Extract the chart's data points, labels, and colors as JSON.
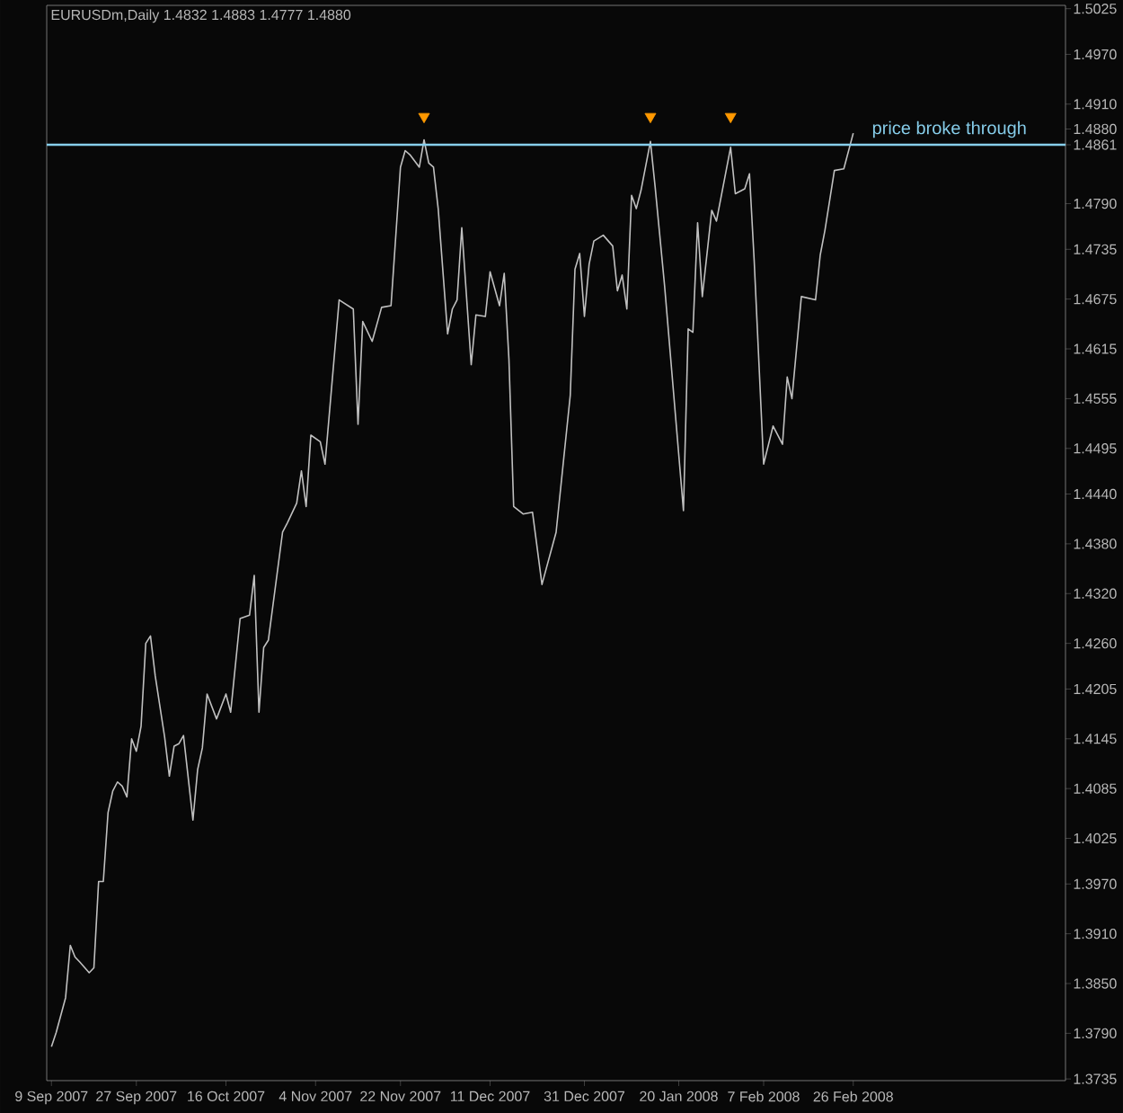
{
  "chart_data": {
    "type": "line",
    "title": "EURUSDm,Daily  1.4832 1.4883 1.4777 1.4880",
    "xlim": [
      "2007-09-08",
      "2008-04-11"
    ],
    "ylim": [
      1.3733,
      1.5029
    ],
    "xticks": [
      {
        "value": "2007-09-09",
        "label": "9 Sep 2007"
      },
      {
        "value": "2007-09-27",
        "label": "27 Sep 2007"
      },
      {
        "value": "2007-10-16",
        "label": "16 Oct 2007"
      },
      {
        "value": "2007-11-04",
        "label": "4 Nov 2007"
      },
      {
        "value": "2007-11-22",
        "label": "22 Nov 2007"
      },
      {
        "value": "2007-12-11",
        "label": "11 Dec 2007"
      },
      {
        "value": "2007-12-31",
        "label": "31 Dec 2007"
      },
      {
        "value": "2008-01-20",
        "label": "20 Jan 2008"
      },
      {
        "value": "2008-02-07",
        "label": "7 Feb 2008"
      },
      {
        "value": "2008-02-26",
        "label": "26 Feb 2008"
      }
    ],
    "yticks": [
      1.5025,
      {
        "value": 1.497,
        "label": "1.4970"
      },
      {
        "value": 1.491,
        "label": "1.4910"
      },
      {
        "value": 1.488,
        "label": "1.4880"
      },
      1.4861,
      {
        "value": 1.479,
        "label": "1.4790"
      },
      1.4735,
      1.4675,
      1.4615,
      1.4555,
      1.4495,
      {
        "value": 1.444,
        "label": "1.4440"
      },
      {
        "value": 1.438,
        "label": "1.4380"
      },
      {
        "value": 1.432,
        "label": "1.4320"
      },
      {
        "value": 1.426,
        "label": "1.4260"
      },
      1.4205,
      1.4145,
      1.4085,
      1.4025,
      {
        "value": 1.397,
        "label": "1.3970"
      },
      {
        "value": 1.391,
        "label": "1.3910"
      },
      {
        "value": 1.385,
        "label": "1.3850"
      },
      {
        "value": 1.379,
        "label": "1.3790"
      },
      1.3735
    ],
    "ref_lines": [
      {
        "axis": "y",
        "value": 1.4861,
        "label": "price broke through",
        "color": "#87ceeb"
      }
    ],
    "series": [
      {
        "color": "#c0c0c0",
        "x": [
          "2007-09-09",
          "2007-09-10",
          "2007-09-12",
          "2007-09-13",
          "2007-09-14",
          "2007-09-15",
          "2007-09-17",
          "2007-09-18",
          "2007-09-19",
          "2007-09-20",
          "2007-09-21",
          "2007-09-22",
          "2007-09-23",
          "2007-09-24",
          "2007-09-25",
          "2007-09-26",
          "2007-09-27",
          "2007-09-28",
          "2007-09-29",
          "2007-09-30",
          "2007-10-01",
          "2007-10-03",
          "2007-10-04",
          "2007-10-05",
          "2007-10-06",
          "2007-10-07",
          "2007-10-09",
          "2007-10-10",
          "2007-10-11",
          "2007-10-12",
          "2007-10-14",
          "2007-10-16",
          "2007-10-17",
          "2007-10-19",
          "2007-10-21",
          "2007-10-22",
          "2007-10-23",
          "2007-10-24",
          "2007-10-25",
          "2007-10-28",
          "2007-10-29",
          "2007-10-31",
          "2007-11-01",
          "2007-11-02",
          "2007-11-03",
          "2007-11-05",
          "2007-11-06",
          "2007-11-09",
          "2007-11-12",
          "2007-11-13",
          "2007-11-14",
          "2007-11-16",
          "2007-11-18",
          "2007-11-20",
          "2007-11-22",
          "2007-11-23",
          "2007-11-24",
          "2007-11-26",
          "2007-11-27",
          "2007-11-28",
          "2007-11-29",
          "2007-11-30",
          "2007-12-02",
          "2007-12-03",
          "2007-12-04",
          "2007-12-05",
          "2007-12-07",
          "2007-12-08",
          "2007-12-10",
          "2007-12-11",
          "2007-12-13",
          "2007-12-14",
          "2007-12-15",
          "2007-12-16",
          "2007-12-18",
          "2007-12-20",
          "2007-12-22",
          "2007-12-25",
          "2007-12-28",
          "2007-12-29",
          "2007-12-30",
          "2007-12-31",
          "2008-01-01",
          "2008-01-02",
          "2008-01-04",
          "2008-01-06",
          "2008-01-07",
          "2008-01-08",
          "2008-01-09",
          "2008-01-10",
          "2008-01-11",
          "2008-01-12",
          "2008-01-14",
          "2008-01-15",
          "2008-01-17",
          "2008-01-21",
          "2008-01-22",
          "2008-01-23",
          "2008-01-24",
          "2008-01-25",
          "2008-01-27",
          "2008-01-28",
          "2008-01-31",
          "2008-02-01",
          "2008-02-03",
          "2008-02-04",
          "2008-02-05",
          "2008-02-07",
          "2008-02-09",
          "2008-02-11",
          "2008-02-12",
          "2008-02-13",
          "2008-02-15",
          "2008-02-18",
          "2008-02-19",
          "2008-02-20",
          "2008-02-22",
          "2008-02-24",
          "2008-02-26"
        ],
        "values": [
          1.3774,
          1.3791,
          1.3833,
          1.3896,
          1.3882,
          1.3876,
          1.3863,
          1.3869,
          1.3973,
          1.3973,
          1.4056,
          1.4082,
          1.4093,
          1.4088,
          1.4075,
          1.4145,
          1.413,
          1.416,
          1.426,
          1.4269,
          1.4221,
          1.4147,
          1.41,
          1.4136,
          1.4139,
          1.4149,
          1.4047,
          1.4108,
          1.4134,
          1.4199,
          1.4169,
          1.4199,
          1.4177,
          1.429,
          1.4294,
          1.4342,
          1.4177,
          1.4255,
          1.4264,
          1.4394,
          1.4405,
          1.4429,
          1.4468,
          1.4425,
          1.4511,
          1.4503,
          1.4476,
          1.4674,
          1.4663,
          1.4524,
          1.4648,
          1.4624,
          1.4665,
          1.4667,
          1.4834,
          1.4854,
          1.4849,
          1.4834,
          1.4867,
          1.4839,
          1.4834,
          1.4784,
          1.4633,
          1.4663,
          1.4674,
          1.4761,
          1.4596,
          1.4656,
          1.4654,
          1.4708,
          1.4667,
          1.4706,
          1.4602,
          1.4425,
          1.4416,
          1.4418,
          1.4331,
          1.4394,
          1.4559,
          1.4711,
          1.473,
          1.4654,
          1.4717,
          1.4745,
          1.4752,
          1.4739,
          1.4685,
          1.4704,
          1.4663,
          1.48,
          1.4784,
          1.4806,
          1.4865,
          1.481,
          1.4691,
          1.442,
          1.4639,
          1.4635,
          1.4767,
          1.4678,
          1.4782,
          1.4769,
          1.4858,
          1.4802,
          1.4808,
          1.4826,
          1.4721,
          1.4476,
          1.4522,
          1.45,
          1.4581,
          1.4555,
          1.4678,
          1.4674,
          1.4728,
          1.4758,
          1.483,
          1.4832,
          1.4875
        ]
      },
      {
        "type": "scatter",
        "color": "#ff9900",
        "marker": "triangle",
        "x": [
          "2007-11-27",
          "2008-01-14",
          "2008-01-31"
        ],
        "values": [
          1.4895,
          1.4895,
          1.4895
        ]
      }
    ]
  }
}
